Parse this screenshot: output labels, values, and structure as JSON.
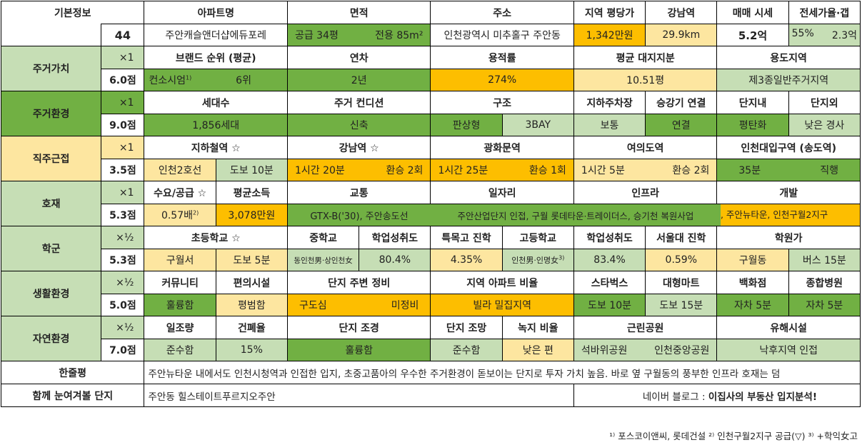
{
  "basic": {
    "label": "기본정보",
    "num": "44",
    "h": [
      "아파트명",
      "면적",
      "주소",
      "지역 평당가",
      "강남역",
      "매매 시세",
      "전세가율·갭"
    ],
    "apt": "주안캐슬앤더샵에듀포레",
    "area_a": "공급 34평",
    "area_b": "전용 85m²",
    "addr": "인천광역시 미추홀구 주안동",
    "price": "1,342만원",
    "gangnam": "29.9km",
    "sale": "5.2억",
    "jeonse_a": "55%",
    "jeonse_b": "2.3억"
  },
  "jg": {
    "label": "주거가치",
    "mult": "×1",
    "score": "6.0점",
    "h": [
      "브랜드 순위 (평균)",
      "연차",
      "용적률",
      "평균 대지지분",
      "용도지역"
    ],
    "brand": "컨소시엄",
    "brand_sup": "1)",
    "rank": "6위",
    "age": "2년",
    "far": "274%",
    "land": "10.51평",
    "zone": "제3종일반주거지역"
  },
  "env": {
    "label": "주거환경",
    "mult": "×1",
    "score": "9.0점",
    "h": [
      "세대수",
      "주거 컨디션",
      "구조",
      "지하주차장",
      "승강기 연결",
      "단지내",
      "단지외"
    ],
    "households": "1,856세대",
    "cond": "신축",
    "s1": "판상형",
    "s2": "3BAY",
    "park": "보통",
    "elev": "연결",
    "inner": "평탄화",
    "outer": "낮은 경사"
  },
  "job": {
    "label": "직주근접",
    "mult": "×1",
    "score": "3.5점",
    "h": [
      "지하철역 ☆",
      "강남역 ☆",
      "광화문역",
      "여의도역",
      "인천대입구역 (송도역)"
    ],
    "sub_a": "인천2호선",
    "sub_b": "도보 10분",
    "gn_a": "1시간 20분",
    "gn_b": "환승 2회",
    "gh_a": "1시간 25분",
    "gh_b": "환승 1회",
    "yd_a": "1시간 5분",
    "yd_b": "환승 2회",
    "ic_a": "35분",
    "ic_b": "직행"
  },
  "dev": {
    "label": "호재",
    "mult": "×1",
    "score": "5.3점",
    "h": [
      "수요/공급 ☆",
      "평균소득",
      "교통",
      "일자리",
      "인프라",
      "개발"
    ],
    "supply": "0.57배",
    "supply_sup": "2)",
    "income": "3,078만원",
    "traffic": "GTX-B('30), 주안송도선",
    "jobs": "주안산업단지 인접, 구월 롯데타운·트레이더스, 승기천 복원사업",
    "devel": ", 주안뉴타운, 인천구월2지구"
  },
  "school": {
    "label": "학군",
    "mult": "×½",
    "score": "5.3점",
    "h": [
      "초등학교 ☆",
      "중학교",
      "학업성취도",
      "특목고 진학",
      "고등학교",
      "학업성취도",
      "서울대 진학",
      "학원가"
    ],
    "el_a": "구월서",
    "el_b": "도보 5분",
    "mid": "동인천男·상인천女",
    "mid_ach": "80.4%",
    "special": "4.35%",
    "high": "인천男·인명女",
    "high_sup": "3)",
    "high_ach": "83.4%",
    "snu": "0.59%",
    "acad_a": "구월동",
    "acad_b": "버스 15분"
  },
  "life": {
    "label": "생활환경",
    "mult": "×½",
    "score": "5.0점",
    "h": [
      "커뮤니티",
      "편의시설",
      "단지 주변 정비",
      "지역 아파트 비율",
      "스타벅스",
      "대형마트",
      "백화점",
      "종합병원"
    ],
    "comm": "훌륭함",
    "conv": "평범함",
    "rd_a": "구도심",
    "rd_b": "미정비",
    "ratio": "빌라 밀집지역",
    "star": "도보 10분",
    "mart": "도보 15분",
    "dept": "자차 5분",
    "hosp": "자차 5분"
  },
  "nature": {
    "label": "자연환경",
    "mult": "×½",
    "score": "7.0점",
    "h": [
      "일조량",
      "건폐율",
      "단지 조경",
      "단지 조망",
      "녹지 비율",
      "근린공원",
      "유해시설"
    ],
    "sun": "준수함",
    "bcr": "15%",
    "land": "훌륭함",
    "view": "준수함",
    "green": "낮은 편",
    "park_a": "석바위공원",
    "park_b": "인천중앙공원",
    "harm": "낙후지역 인접"
  },
  "summary": {
    "label": "한줄평",
    "text": "주안뉴타운 내에서도 인천시청역과 인접한 입지, 초중고품아의 우수한 주거환경이 돋보이는 단지로 투자 가치 높음. 바로 옆 구월동의 풍부한 인프라 호재는 덤"
  },
  "related": {
    "label": "함께 눈여겨볼 단지",
    "text": "주안동 힐스테이트푸르지오주안",
    "blog_a": "네이버 블로그 : ",
    "blog_b": "이집사의 부동산 입지분석!"
  },
  "footnote": "¹⁾ 포스코이앤씨, 롯데건설 ²⁾ 인천구월2지구 공급(▽) ³⁾ +학익女고",
  "colors": {
    "green": "#71b043",
    "light_green": "#c6deb5",
    "orange": "#fdbe00",
    "light_yellow": "#fde6a0"
  }
}
